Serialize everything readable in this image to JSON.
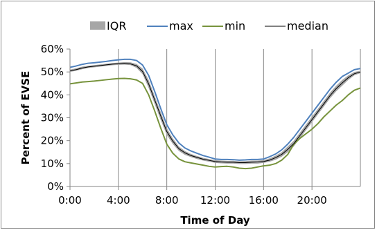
{
  "chart_data": {
    "type": "area",
    "title": "",
    "xlabel": "Time of Day",
    "ylabel": "Percent of  EVSE",
    "x_unit": "hours",
    "xlim": [
      0,
      24
    ],
    "ylim": [
      0,
      60
    ],
    "x_ticks": [
      0,
      4,
      8,
      12,
      16,
      20
    ],
    "x_tick_labels": [
      "0:00",
      "4:00",
      "8:00",
      "12:00",
      "16:00",
      "20:00"
    ],
    "y_ticks": [
      0,
      10,
      20,
      30,
      40,
      50,
      60
    ],
    "y_tick_labels": [
      "0%",
      "10%",
      "20%",
      "30%",
      "40%",
      "50%",
      "60%"
    ],
    "grid": "vertical lines at x ticks",
    "legend_position": "top",
    "x": [
      0,
      0.5,
      1,
      1.5,
      2,
      2.5,
      3,
      3.5,
      4,
      4.5,
      5,
      5.5,
      6,
      6.5,
      7,
      7.5,
      8,
      8.5,
      9,
      9.5,
      10,
      10.5,
      11,
      11.5,
      12,
      12.5,
      13,
      13.5,
      14,
      14.5,
      15,
      15.5,
      16,
      16.5,
      17,
      17.5,
      18,
      18.5,
      19,
      19.5,
      20,
      20.5,
      21,
      21.5,
      22,
      22.5,
      23,
      23.5,
      24
    ],
    "series": [
      {
        "name": "IQR",
        "color": "#a6a6a6",
        "lower": [
          50.0,
          50.5,
          51.2,
          51.7,
          52.0,
          52.3,
          52.6,
          52.9,
          53.1,
          53.2,
          53.0,
          51.8,
          49.0,
          43.0,
          36.0,
          29.0,
          22.5,
          18.5,
          15.5,
          13.8,
          12.8,
          12.0,
          11.3,
          10.8,
          10.3,
          10.1,
          10.0,
          10.0,
          9.8,
          9.8,
          10.0,
          10.0,
          10.3,
          10.8,
          11.7,
          13.0,
          15.0,
          17.5,
          21.0,
          24.5,
          28.0,
          31.5,
          35.0,
          38.5,
          41.5,
          44.0,
          46.5,
          48.5,
          49.5
        ],
        "upper": [
          51.0,
          51.6,
          52.3,
          52.7,
          53.0,
          53.3,
          53.6,
          53.9,
          54.1,
          54.3,
          54.2,
          53.5,
          51.5,
          46.5,
          39.5,
          32.5,
          25.5,
          21.0,
          17.5,
          15.5,
          14.2,
          13.3,
          12.5,
          12.0,
          11.5,
          11.3,
          11.2,
          11.2,
          11.0,
          11.1,
          11.3,
          11.3,
          11.5,
          12.3,
          13.5,
          15.0,
          17.5,
          20.0,
          23.5,
          27.0,
          30.5,
          34.0,
          37.5,
          41.0,
          44.0,
          46.5,
          48.5,
          50.0,
          50.5
        ]
      },
      {
        "name": "max",
        "color": "#4f81bd",
        "values": [
          52.0,
          52.6,
          53.3,
          53.8,
          54.0,
          54.3,
          54.6,
          55.0,
          55.3,
          55.5,
          55.5,
          55.0,
          53.0,
          48.5,
          41.5,
          34.0,
          27.0,
          22.5,
          19.0,
          16.8,
          15.5,
          14.5,
          13.5,
          12.8,
          12.0,
          11.8,
          11.8,
          11.7,
          11.5,
          11.6,
          11.8,
          11.8,
          12.0,
          13.0,
          14.2,
          16.0,
          18.5,
          21.5,
          25.0,
          28.5,
          32.0,
          35.5,
          39.0,
          42.5,
          45.5,
          48.0,
          49.5,
          51.0,
          51.5
        ]
      },
      {
        "name": "min",
        "color": "#77933c",
        "values": [
          44.8,
          45.2,
          45.6,
          45.8,
          46.0,
          46.3,
          46.6,
          46.9,
          47.1,
          47.2,
          47.0,
          46.5,
          45.0,
          40.0,
          33.0,
          25.5,
          18.5,
          14.5,
          12.0,
          10.8,
          10.3,
          9.8,
          9.3,
          8.8,
          8.5,
          8.7,
          8.8,
          8.5,
          8.0,
          7.8,
          8.0,
          8.5,
          9.0,
          9.3,
          10.0,
          11.5,
          14.0,
          18.5,
          21.0,
          23.0,
          25.0,
          27.5,
          30.5,
          33.0,
          35.5,
          37.5,
          40.0,
          42.0,
          43.0
        ]
      },
      {
        "name": "median",
        "color": "#000000",
        "values": [
          50.5,
          51.0,
          51.7,
          52.2,
          52.5,
          52.8,
          53.1,
          53.4,
          53.6,
          53.7,
          53.5,
          52.7,
          50.2,
          44.8,
          37.8,
          30.8,
          24.0,
          19.8,
          16.5,
          14.7,
          13.5,
          12.7,
          11.9,
          11.4,
          10.9,
          10.7,
          10.6,
          10.6,
          10.4,
          10.4,
          10.6,
          10.7,
          10.9,
          11.5,
          12.6,
          14.0,
          16.2,
          18.7,
          22.2,
          25.7,
          29.2,
          32.7,
          36.2,
          39.7,
          42.7,
          45.2,
          47.5,
          49.2,
          50.0
        ]
      }
    ]
  }
}
